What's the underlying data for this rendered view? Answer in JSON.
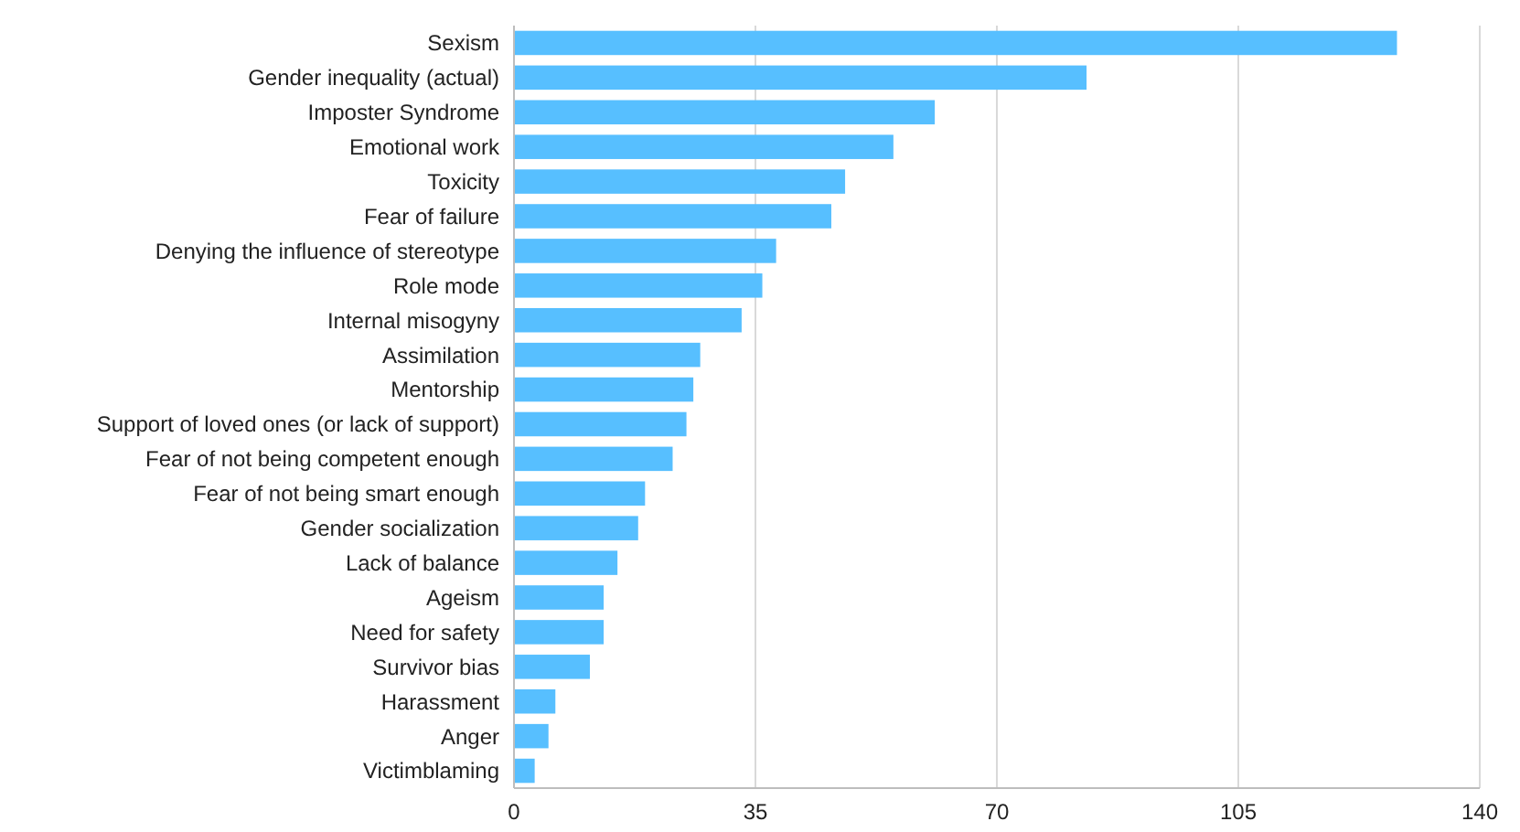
{
  "chart_data": {
    "type": "bar",
    "orientation": "horizontal",
    "categories": [
      "Sexism",
      "Gender inequality (actual)",
      "Imposter Syndrome",
      "Emotional work",
      "Toxicity",
      "Fear of failure",
      "Denying the influence of stereotype",
      "Role mode",
      "Internal misogyny",
      "Assimilation",
      "Mentorship",
      "Support of loved ones (or lack of support)",
      "Fear of not being competent enough",
      "Fear of not being smart enough",
      "Gender socialization",
      "Lack of balance",
      "Ageism",
      "Need for safety",
      "Survivor bias",
      "Harassment",
      "Anger",
      "Victimblaming"
    ],
    "values": [
      128,
      83,
      61,
      55,
      48,
      46,
      38,
      36,
      33,
      27,
      26,
      25,
      23,
      19,
      18,
      15,
      13,
      13,
      11,
      6,
      5,
      3
    ],
    "color": "#57bfff",
    "xlim": [
      0,
      140
    ],
    "xticks": [
      0,
      35,
      70,
      105,
      140
    ],
    "grid": "x"
  }
}
